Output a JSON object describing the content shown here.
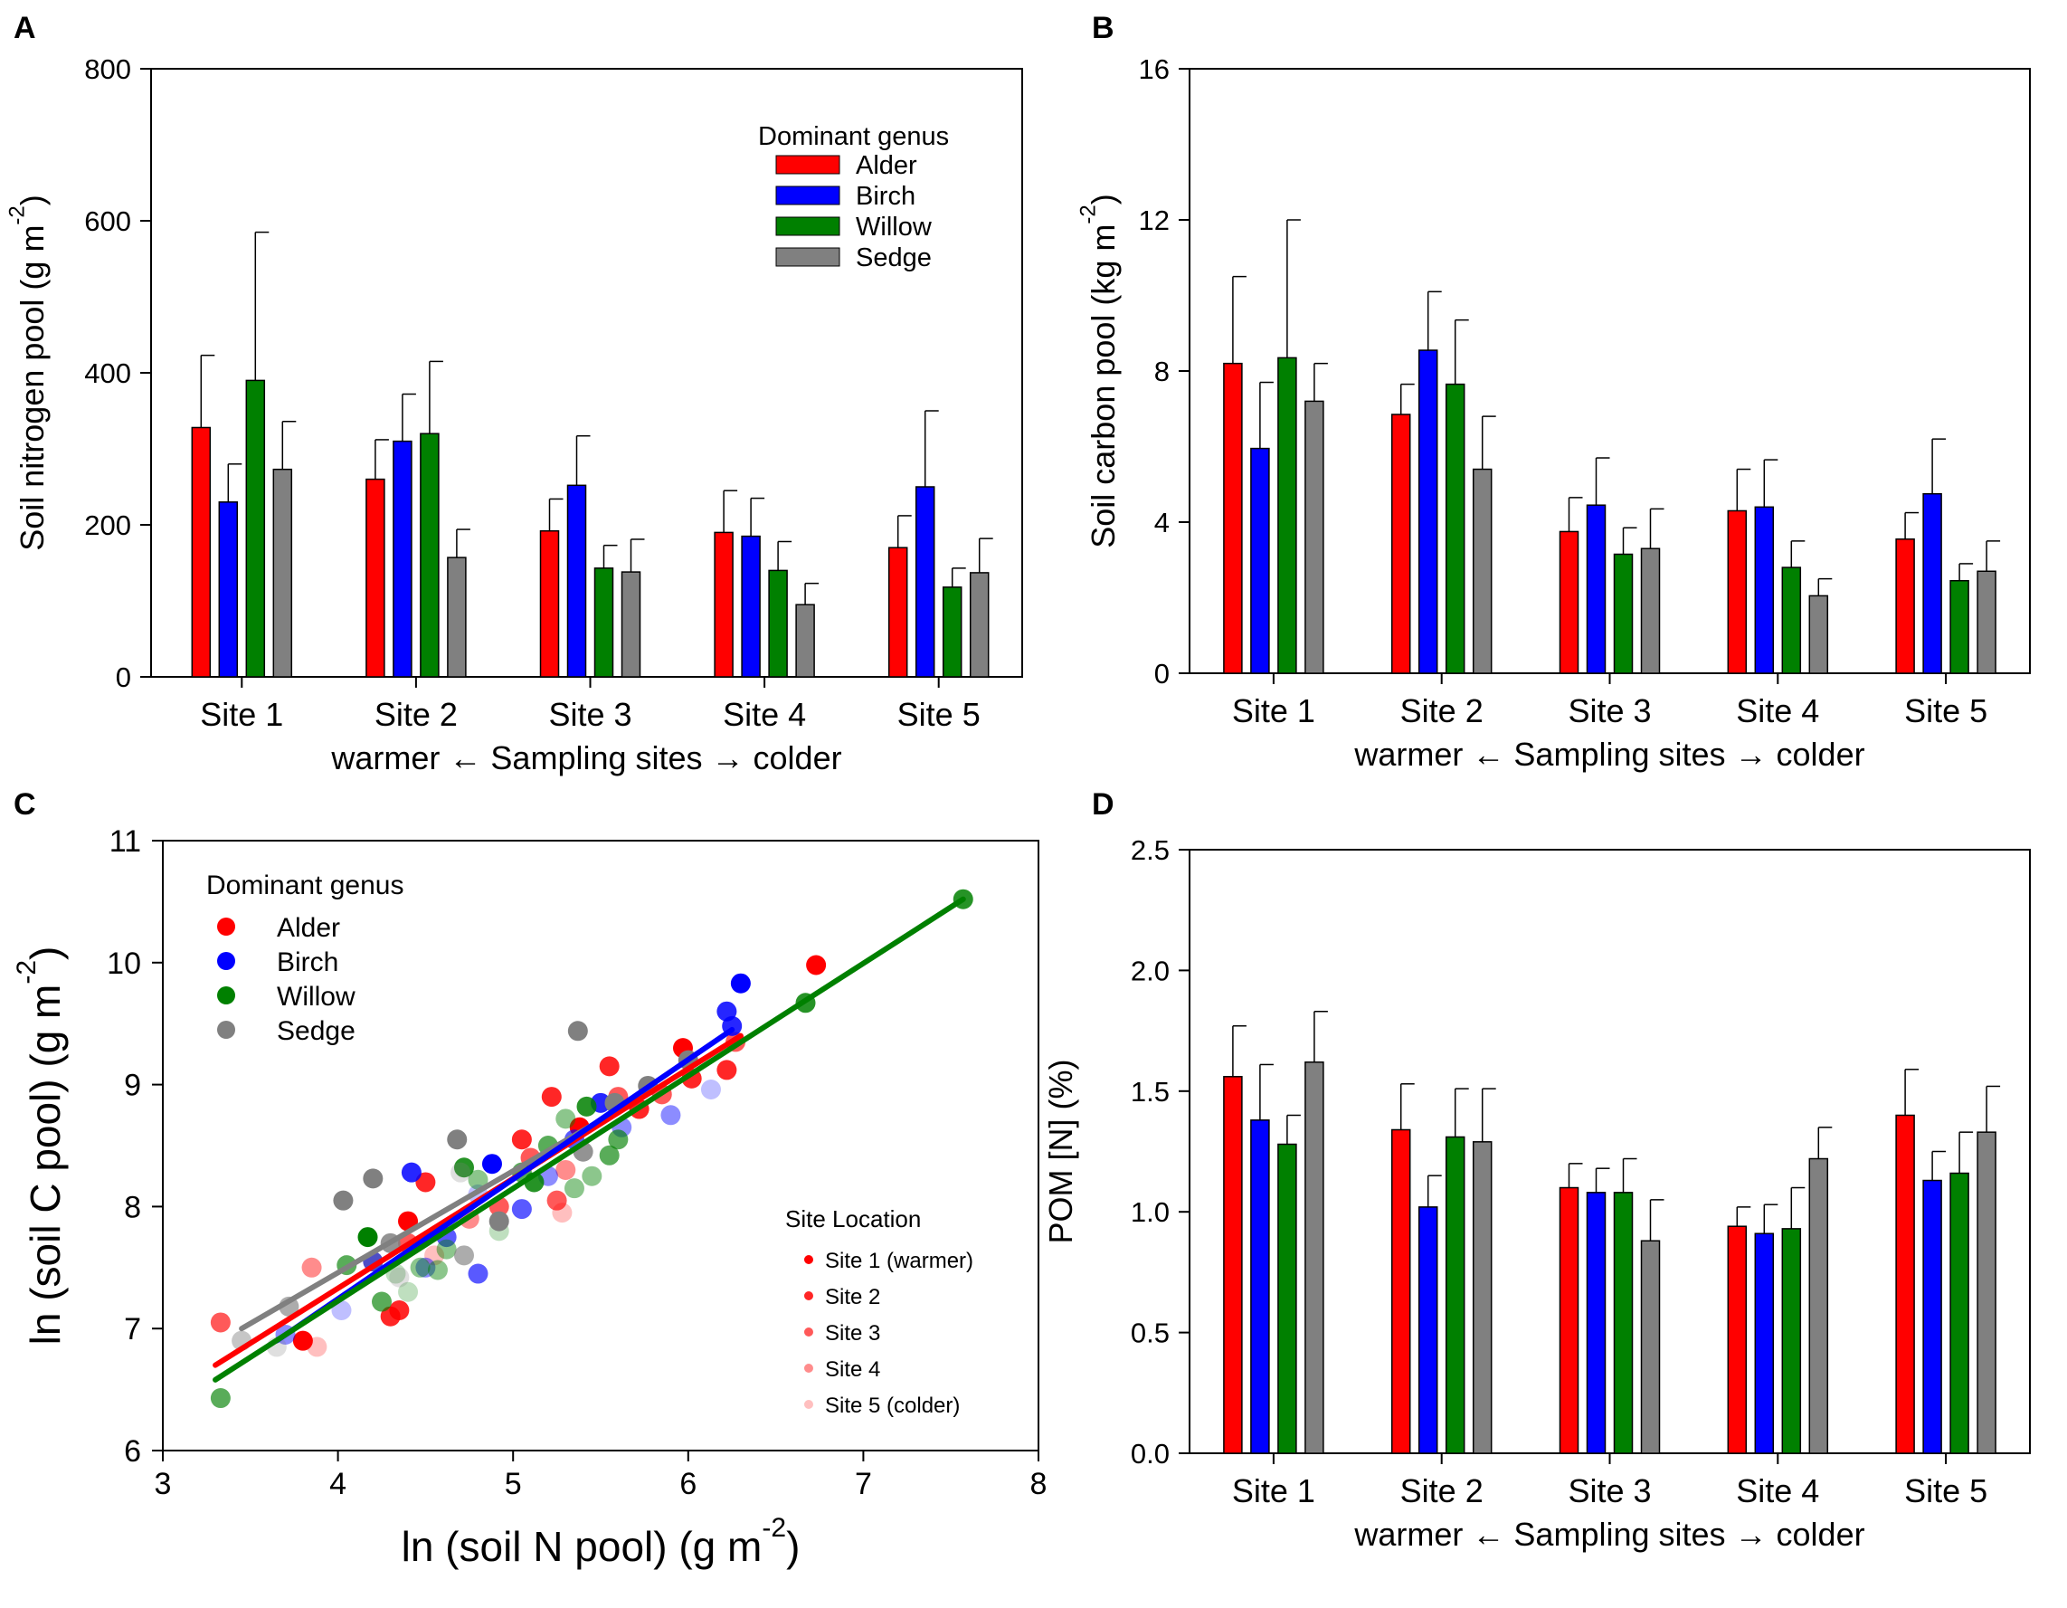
{
  "colors": {
    "alder": "#ff0000",
    "birch": "#0000ff",
    "willow": "#008000",
    "sedge": "#808080",
    "black": "#000000"
  },
  "chart_data": [
    {
      "panel": "A",
      "type": "bar",
      "ylabel": "Soil nitrogen pool (g m",
      "ylabel_sup": "-2",
      "ylabel_end": ")",
      "xlabel": "warmer ← Sampling sites → colder",
      "categories": [
        "Site 1",
        "Site 2",
        "Site 3",
        "Site 4",
        "Site 5"
      ],
      "ylim": [
        0,
        800
      ],
      "yticks": [
        "0",
        "200",
        "400",
        "600",
        "800"
      ],
      "legend_title": "Dominant genus",
      "series": [
        {
          "name": "Alder",
          "values": [
            328,
            260,
            192,
            190,
            170
          ],
          "errors": [
            95,
            52,
            42,
            55,
            42
          ]
        },
        {
          "name": "Birch",
          "values": [
            230,
            310,
            252,
            185,
            250
          ],
          "errors": [
            50,
            62,
            65,
            50,
            100
          ]
        },
        {
          "name": "Willow",
          "values": [
            390,
            320,
            143,
            140,
            118
          ],
          "errors": [
            195,
            95,
            30,
            38,
            25
          ]
        },
        {
          "name": "Sedge",
          "values": [
            273,
            157,
            138,
            95,
            137
          ],
          "errors": [
            63,
            37,
            43,
            28,
            45
          ]
        }
      ]
    },
    {
      "panel": "B",
      "type": "bar",
      "ylabel": "Soil carbon pool (kg m",
      "ylabel_sup": "-2",
      "ylabel_end": ")",
      "xlabel": "warmer ← Sampling sites → colder",
      "categories": [
        "Site 1",
        "Site 2",
        "Site 3",
        "Site 4",
        "Site 5"
      ],
      "ylim": [
        0,
        16
      ],
      "yticks": [
        "0",
        "4",
        "8",
        "12",
        "16"
      ],
      "series": [
        {
          "name": "Alder",
          "values": [
            8.2,
            6.85,
            3.75,
            4.3,
            3.55
          ],
          "errors": [
            2.3,
            0.8,
            0.9,
            1.1,
            0.7
          ]
        },
        {
          "name": "Birch",
          "values": [
            5.95,
            8.55,
            4.45,
            4.4,
            4.75
          ],
          "errors": [
            1.75,
            1.55,
            1.25,
            1.25,
            1.45
          ]
        },
        {
          "name": "Willow",
          "values": [
            8.35,
            7.65,
            3.15,
            2.8,
            2.45
          ],
          "errors": [
            3.65,
            1.7,
            0.7,
            0.7,
            0.45
          ]
        },
        {
          "name": "Sedge",
          "values": [
            7.2,
            5.4,
            3.3,
            2.05,
            2.7
          ],
          "errors": [
            1.0,
            1.4,
            1.05,
            0.45,
            0.8
          ]
        }
      ]
    },
    {
      "panel": "C",
      "type": "scatter",
      "xlabel": "ln (soil N pool) (g m",
      "xlabel_sup": "-2",
      "xlabel_end": ")",
      "ylabel": "ln (soil C pool) (g m",
      "ylabel_sup": "-2",
      "ylabel_end": ")",
      "xlim": [
        3,
        8
      ],
      "ylim": [
        6,
        11
      ],
      "xticks": [
        "3",
        "4",
        "5",
        "6",
        "7",
        "8"
      ],
      "yticks": [
        "6",
        "7",
        "8",
        "9",
        "10",
        "11"
      ],
      "legend_title": "Dominant genus",
      "legend": [
        "Alder",
        "Birch",
        "Willow",
        "Sedge"
      ],
      "site_legend_title": "Site Location",
      "site_legend": [
        "Site 1 (warmer)",
        "Site 2",
        "Site 3",
        "Site 4",
        "Site 5 (colder)"
      ],
      "site_alpha": [
        1.0,
        0.85,
        0.65,
        0.45,
        0.25
      ],
      "fit_lines": [
        {
          "name": "Sedge",
          "x": [
            3.45,
            5.55
          ],
          "y": [
            7.0,
            8.75
          ]
        },
        {
          "name": "Alder",
          "x": [
            3.3,
            6.3
          ],
          "y": [
            6.7,
            9.4
          ]
        },
        {
          "name": "Birch",
          "x": [
            3.65,
            6.25
          ],
          "y": [
            6.9,
            9.45
          ]
        },
        {
          "name": "Willow",
          "x": [
            3.3,
            7.57
          ],
          "y": [
            6.58,
            10.52
          ]
        }
      ],
      "points": [
        [
          3.33,
          7.05,
          "Alder",
          3
        ],
        [
          3.85,
          7.5,
          "Alder",
          4
        ],
        [
          3.8,
          6.9,
          "Alder",
          1
        ],
        [
          3.88,
          6.85,
          "Alder",
          5
        ],
        [
          4.3,
          7.1,
          "Alder",
          2
        ],
        [
          4.35,
          7.15,
          "Alder",
          2
        ],
        [
          4.4,
          7.7,
          "Alder",
          3
        ],
        [
          4.4,
          7.88,
          "Alder",
          1
        ],
        [
          4.5,
          8.2,
          "Alder",
          2
        ],
        [
          4.75,
          7.9,
          "Alder",
          4
        ],
        [
          4.92,
          8.0,
          "Alder",
          3
        ],
        [
          5.05,
          8.55,
          "Alder",
          2
        ],
        [
          5.1,
          8.4,
          "Alder",
          3
        ],
        [
          5.22,
          8.9,
          "Alder",
          2
        ],
        [
          5.25,
          8.05,
          "Alder",
          3
        ],
        [
          5.3,
          8.3,
          "Alder",
          4
        ],
        [
          5.38,
          8.65,
          "Alder",
          1
        ],
        [
          5.55,
          9.15,
          "Alder",
          2
        ],
        [
          5.6,
          8.9,
          "Alder",
          3
        ],
        [
          5.72,
          8.8,
          "Alder",
          2
        ],
        [
          5.85,
          8.92,
          "Alder",
          3
        ],
        [
          5.97,
          9.3,
          "Alder",
          1
        ],
        [
          6.02,
          9.05,
          "Alder",
          2
        ],
        [
          6.22,
          9.12,
          "Alder",
          2
        ],
        [
          6.27,
          9.35,
          "Alder",
          3
        ],
        [
          6.73,
          9.98,
          "Alder",
          1
        ],
        [
          4.55,
          7.6,
          "Alder",
          5
        ],
        [
          5.28,
          7.95,
          "Alder",
          5
        ],
        [
          3.7,
          6.95,
          "Birch",
          4
        ],
        [
          4.02,
          7.15,
          "Birch",
          5
        ],
        [
          4.2,
          7.55,
          "Birch",
          2
        ],
        [
          4.42,
          8.28,
          "Birch",
          2
        ],
        [
          4.5,
          7.5,
          "Birch",
          4
        ],
        [
          4.62,
          7.75,
          "Birch",
          3
        ],
        [
          4.8,
          7.45,
          "Birch",
          3
        ],
        [
          4.88,
          8.35,
          "Birch",
          1
        ],
        [
          5.05,
          7.98,
          "Birch",
          3
        ],
        [
          5.2,
          8.25,
          "Birch",
          4
        ],
        [
          5.35,
          8.55,
          "Birch",
          3
        ],
        [
          5.5,
          8.85,
          "Birch",
          2
        ],
        [
          5.62,
          8.65,
          "Birch",
          4
        ],
        [
          5.9,
          8.75,
          "Birch",
          4
        ],
        [
          6.13,
          8.96,
          "Birch",
          5
        ],
        [
          6.22,
          9.6,
          "Birch",
          2
        ],
        [
          6.25,
          9.48,
          "Birch",
          2
        ],
        [
          6.3,
          9.83,
          "Birch",
          1
        ],
        [
          4.8,
          8.1,
          "Birch",
          5
        ],
        [
          3.33,
          6.43,
          "Willow",
          3
        ],
        [
          4.05,
          7.52,
          "Willow",
          3
        ],
        [
          4.17,
          7.75,
          "Willow",
          1
        ],
        [
          4.25,
          7.22,
          "Willow",
          3
        ],
        [
          4.33,
          7.45,
          "Willow",
          5
        ],
        [
          4.47,
          7.5,
          "Willow",
          4
        ],
        [
          4.57,
          7.48,
          "Willow",
          4
        ],
        [
          4.62,
          7.65,
          "Willow",
          4
        ],
        [
          4.72,
          8.32,
          "Willow",
          2
        ],
        [
          4.8,
          8.22,
          "Willow",
          4
        ],
        [
          4.92,
          7.8,
          "Willow",
          5
        ],
        [
          5.05,
          8.28,
          "Willow",
          3
        ],
        [
          5.12,
          8.2,
          "Willow",
          2
        ],
        [
          5.2,
          8.5,
          "Willow",
          3
        ],
        [
          5.3,
          8.72,
          "Willow",
          4
        ],
        [
          5.35,
          8.15,
          "Willow",
          4
        ],
        [
          5.42,
          8.82,
          "Willow",
          2
        ],
        [
          5.45,
          8.25,
          "Willow",
          4
        ],
        [
          5.55,
          8.42,
          "Willow",
          3
        ],
        [
          5.6,
          8.55,
          "Willow",
          3
        ],
        [
          6.67,
          9.67,
          "Willow",
          2
        ],
        [
          7.57,
          10.52,
          "Willow",
          2
        ],
        [
          4.4,
          7.3,
          "Willow",
          5
        ],
        [
          3.45,
          6.9,
          "Sedge",
          4
        ],
        [
          3.65,
          6.85,
          "Sedge",
          5
        ],
        [
          3.72,
          7.18,
          "Sedge",
          3
        ],
        [
          4.03,
          8.05,
          "Sedge",
          1
        ],
        [
          4.2,
          8.23,
          "Sedge",
          1
        ],
        [
          4.3,
          7.7,
          "Sedge",
          2
        ],
        [
          4.68,
          8.55,
          "Sedge",
          1
        ],
        [
          4.72,
          7.6,
          "Sedge",
          3
        ],
        [
          4.92,
          7.88,
          "Sedge",
          1
        ],
        [
          5.37,
          9.44,
          "Sedge",
          1
        ],
        [
          5.4,
          8.45,
          "Sedge",
          2
        ],
        [
          5.58,
          8.85,
          "Sedge",
          1
        ],
        [
          5.77,
          8.99,
          "Sedge",
          1
        ],
        [
          6.0,
          9.2,
          "Sedge",
          1
        ],
        [
          4.2,
          7.55,
          "Sedge",
          4
        ],
        [
          4.7,
          8.28,
          "Sedge",
          5
        ],
        [
          4.35,
          7.42,
          "Sedge",
          5
        ]
      ]
    },
    {
      "panel": "D",
      "type": "bar",
      "ylabel": "POM [N]  (%)",
      "xlabel": "warmer ← Sampling sites → colder",
      "categories": [
        "Site 1",
        "Site 2",
        "Site 3",
        "Site 4",
        "Site 5"
      ],
      "ylim": [
        0,
        2.5
      ],
      "yticks": [
        "0.0",
        "0.5",
        "1.0",
        "1.5",
        "2.0",
        "2.5"
      ],
      "series": [
        {
          "name": "Alder",
          "values": [
            1.56,
            1.34,
            1.1,
            0.94,
            1.4
          ],
          "errors": [
            0.21,
            0.19,
            0.1,
            0.08,
            0.19
          ]
        },
        {
          "name": "Birch",
          "values": [
            1.38,
            1.02,
            1.08,
            0.91,
            1.13
          ],
          "errors": [
            0.23,
            0.13,
            0.1,
            0.12,
            0.12
          ]
        },
        {
          "name": "Willow",
          "values": [
            1.28,
            1.31,
            1.08,
            0.93,
            1.16
          ],
          "errors": [
            0.12,
            0.2,
            0.14,
            0.17,
            0.17
          ]
        },
        {
          "name": "Sedge",
          "values": [
            1.62,
            1.29,
            0.88,
            1.22,
            1.33
          ],
          "errors": [
            0.21,
            0.22,
            0.17,
            0.13,
            0.19
          ]
        }
      ]
    }
  ],
  "panel_labels": [
    "A",
    "B",
    "C",
    "D"
  ]
}
